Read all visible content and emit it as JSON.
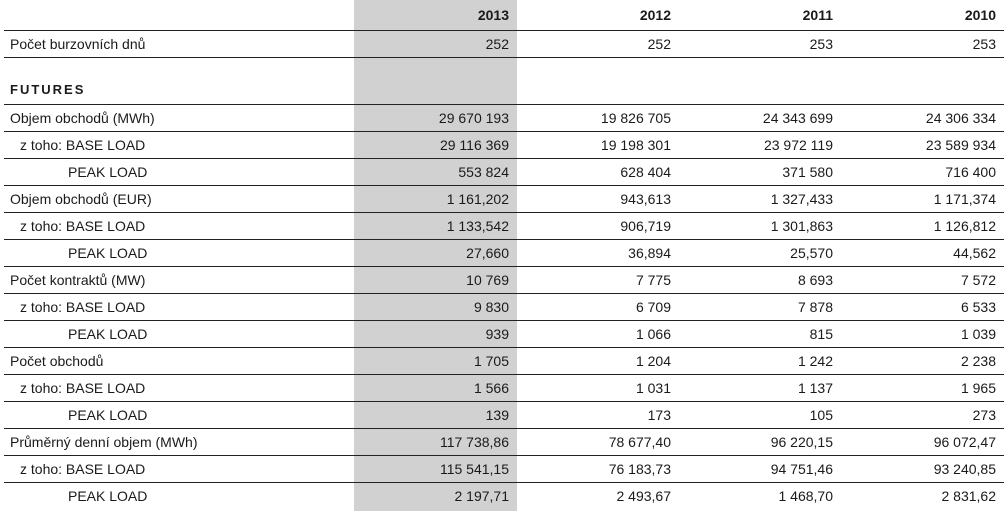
{
  "header": {
    "years": [
      "2013",
      "2012",
      "2011",
      "2010"
    ]
  },
  "trading_days": {
    "label": "Počet burzovních dnů",
    "values": [
      "252",
      "252",
      "253",
      "253"
    ]
  },
  "section_title": "FUTURES",
  "rows": [
    {
      "label": "Objem obchodů (MWh)",
      "values": [
        "29 670 193",
        "19 826 705",
        "24 343 699",
        "24 306 334"
      ]
    },
    {
      "label": "z toho: BASE LOAD",
      "values": [
        "29 116 369",
        "19 198 301",
        "23 972 119",
        "23 589 934"
      ]
    },
    {
      "label": "PEAK LOAD",
      "values": [
        "553 824",
        "628 404",
        "371 580",
        "716 400"
      ]
    },
    {
      "label": "Objem obchodů (EUR)",
      "values": [
        "1 161,202",
        "943,613",
        "1 327,433",
        "1 171,374"
      ]
    },
    {
      "label": "z toho: BASE LOAD",
      "values": [
        "1 133,542",
        "906,719",
        "1 301,863",
        "1 126,812"
      ]
    },
    {
      "label": "PEAK LOAD",
      "values": [
        "27,660",
        "36,894",
        "25,570",
        "44,562"
      ]
    },
    {
      "label": "Počet kontraktů (MW)",
      "values": [
        "10 769",
        "7 775",
        "8 693",
        "7 572"
      ]
    },
    {
      "label": "z toho: BASE LOAD",
      "values": [
        "9 830",
        "6 709",
        "7 878",
        "6 533"
      ]
    },
    {
      "label": "PEAK LOAD",
      "values": [
        "939",
        "1 066",
        "815",
        "1 039"
      ]
    },
    {
      "label": "Počet obchodů",
      "values": [
        "1 705",
        "1 204",
        "1 242",
        "2 238"
      ]
    },
    {
      "label": "z toho: BASE LOAD",
      "values": [
        "1 566",
        "1 031",
        "1 137",
        "1 965"
      ]
    },
    {
      "label": "PEAK LOAD",
      "values": [
        "139",
        "173",
        "105",
        "273"
      ]
    },
    {
      "label": "Průměrný denní objem (MWh)",
      "values": [
        "117 738,86",
        "78 677,40",
        "96 220,15",
        "96 072,47"
      ]
    },
    {
      "label": "z toho: BASE LOAD",
      "values": [
        "115 541,15",
        "76 183,73",
        "94 751,46",
        "93 240,85"
      ]
    },
    {
      "label": "PEAK LOAD",
      "values": [
        "2 197,71",
        "2 493,67",
        "1 468,70",
        "2 831,62"
      ]
    }
  ]
}
